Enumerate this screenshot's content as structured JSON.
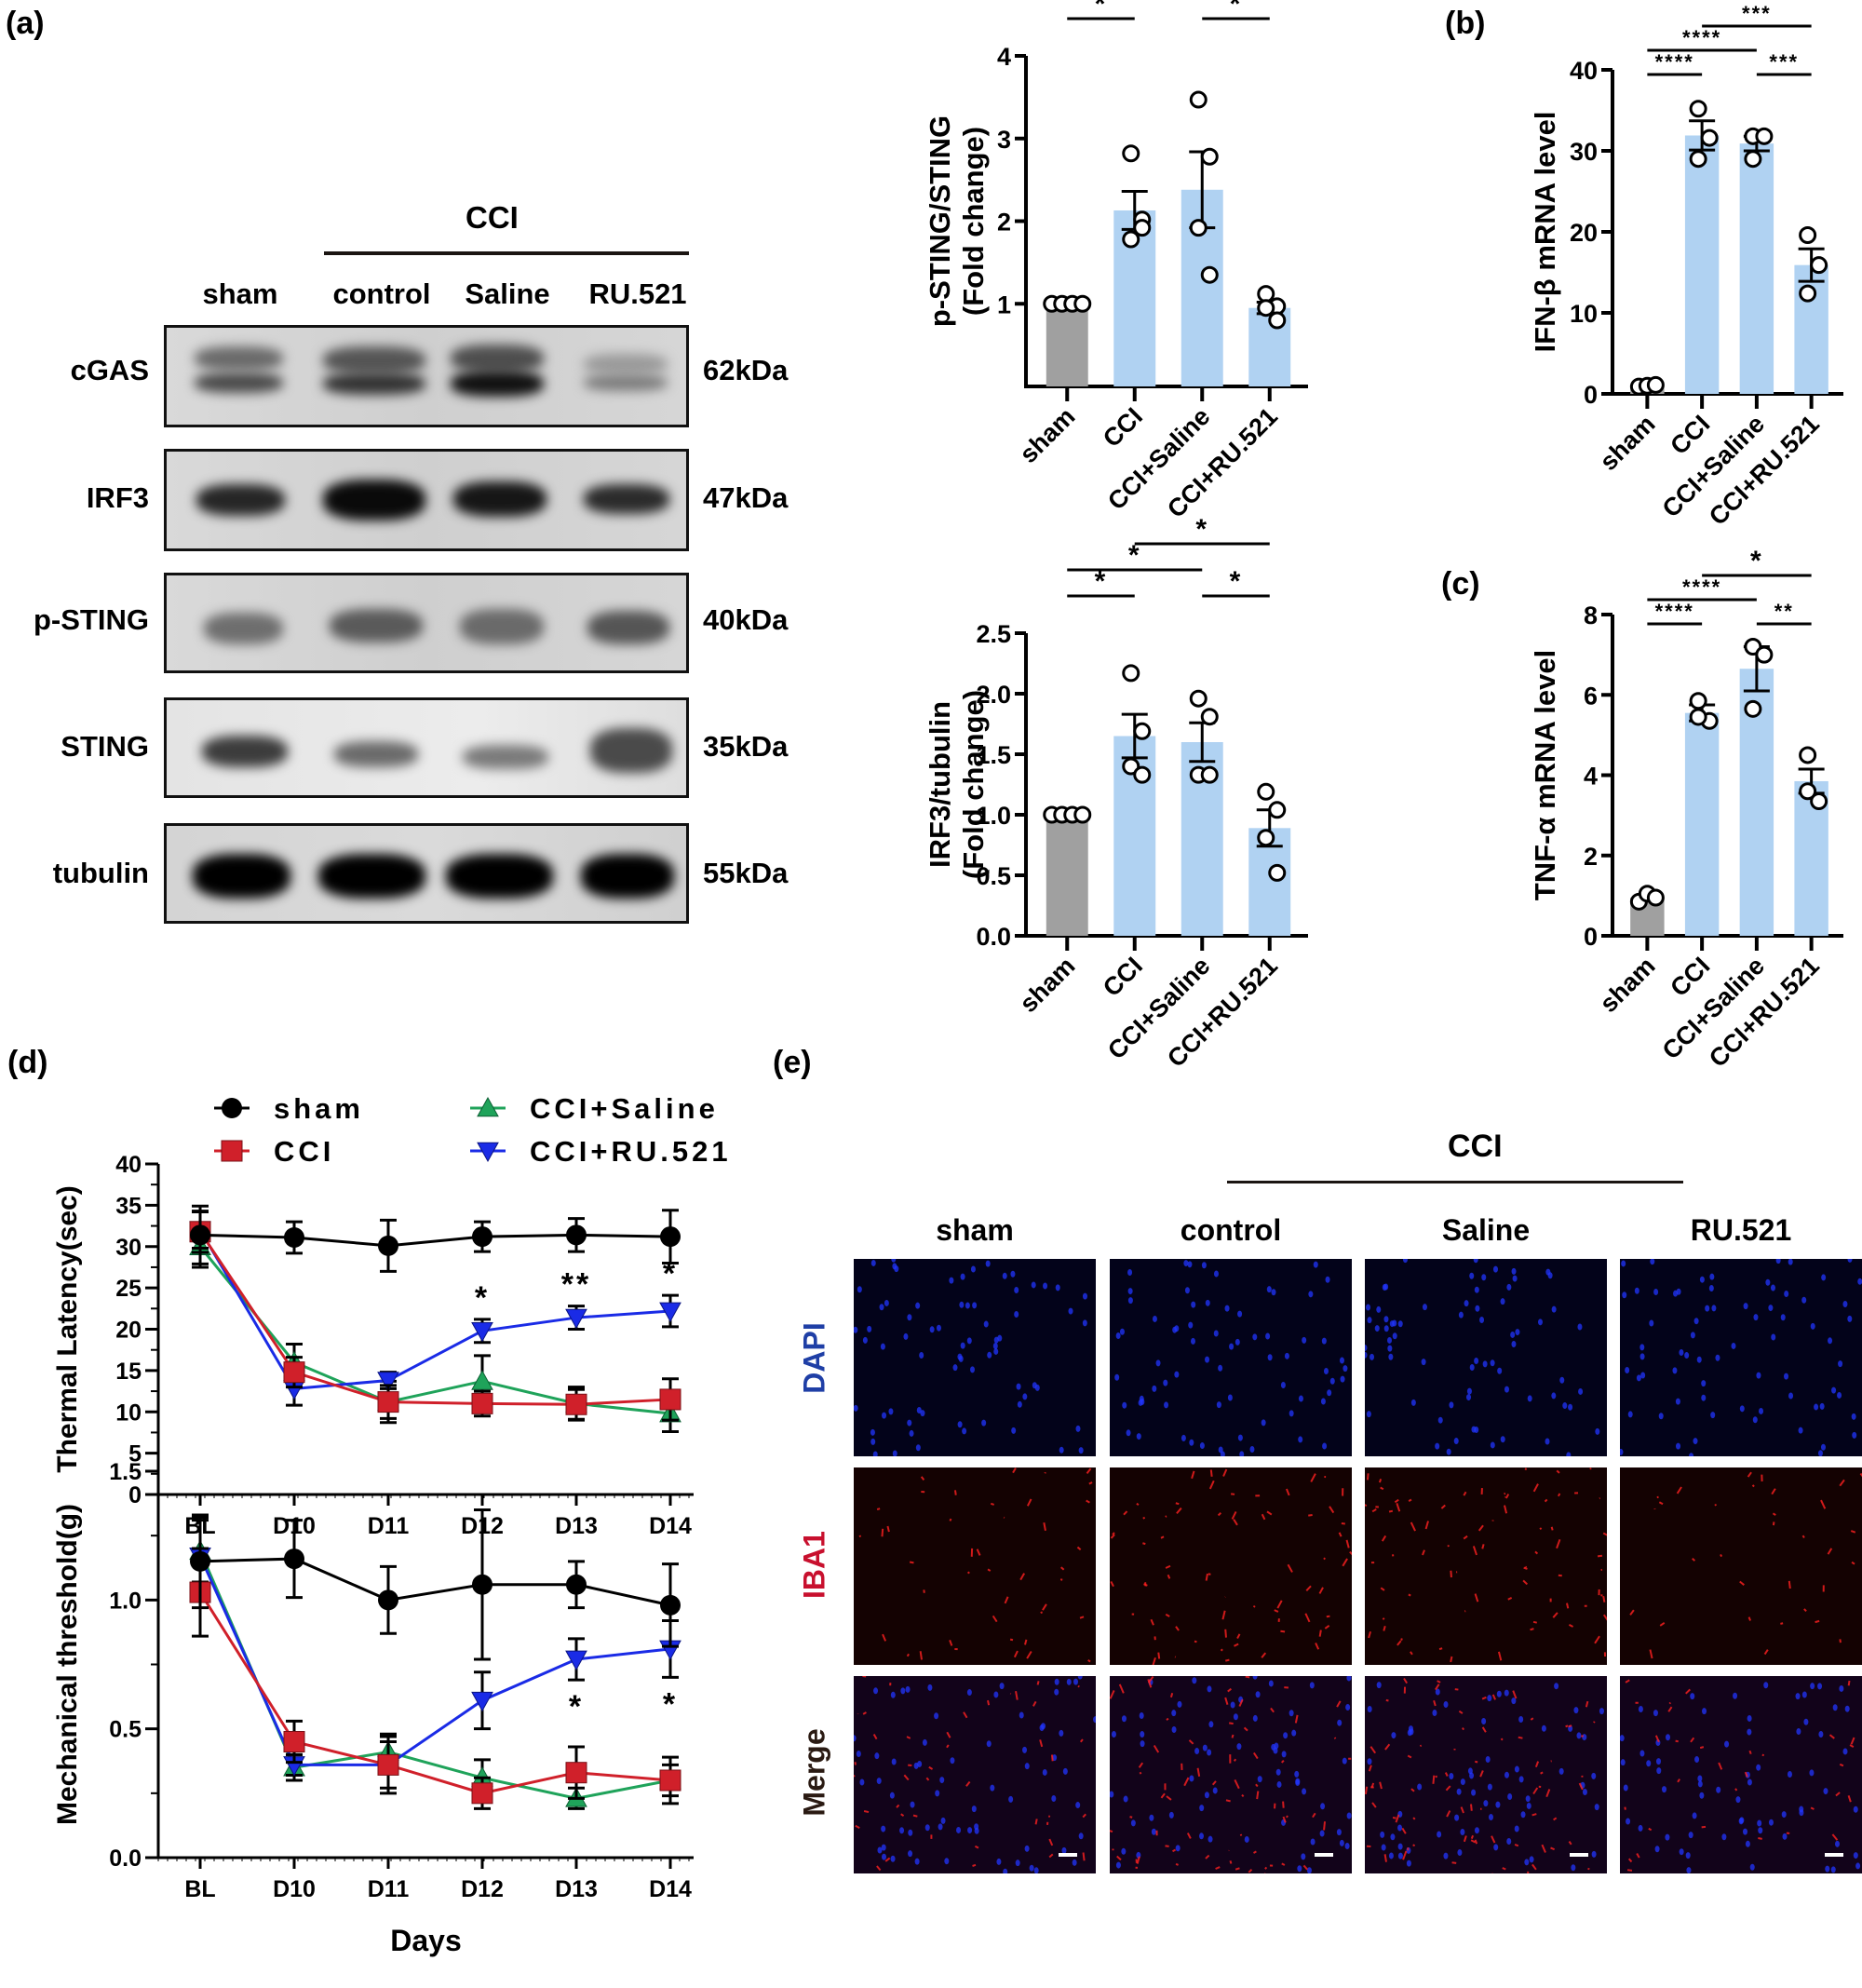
{
  "figure": {
    "panels": {
      "a": "(a)",
      "b": "(b)",
      "c": "(c)",
      "d": "(d)",
      "e": "(e)"
    },
    "western_blot": {
      "group_label": "CCI",
      "lanes": [
        "sham",
        "control",
        "Saline",
        "RU.521"
      ],
      "rows": [
        {
          "protein": "cGAS",
          "kda": "62kDa"
        },
        {
          "protein": "IRF3",
          "kda": "47kDa"
        },
        {
          "protein": "p-STING",
          "kda": "40kDa"
        },
        {
          "protein": "STING",
          "kda": "35kDa"
        },
        {
          "protein": "tubulin",
          "kda": "55kDa"
        }
      ]
    },
    "immunofluorescence": {
      "group_label": "CCI",
      "columns": [
        "sham",
        "control",
        "Saline",
        "RU.521"
      ],
      "rows": [
        {
          "label": "DAPI",
          "color": "#1f3fa6"
        },
        {
          "label": "IBA1",
          "color": "#c8102e"
        },
        {
          "label": "Merge",
          "color": "#2a1a12"
        }
      ]
    },
    "colors": {
      "sham_bar": "#a0a0a0",
      "treatment_bar": "#b0d2f2",
      "sham_line": "#000000",
      "cci_line": "#d0202a",
      "saline_line": "#1fa35a",
      "ru521_line": "#1a2be6"
    }
  },
  "chart_data": [
    {
      "id": "pSTING",
      "type": "bar",
      "title": "",
      "xlabel": "",
      "ylabel": "p-STING/STING (Fold change)",
      "ylabel_lines": [
        "p-STING/STING",
        "(Fold change)"
      ],
      "categories": [
        "sham",
        "CCI",
        "CCI+Saline",
        "CCI+RU.521"
      ],
      "values": [
        1.0,
        2.13,
        2.38,
        0.95
      ],
      "sem": [
        0,
        0.23,
        0.46,
        0.07
      ],
      "points": [
        [
          1,
          1,
          1,
          1
        ],
        [
          2.82,
          2.02,
          1.78,
          1.92
        ],
        [
          3.47,
          2.78,
          1.92,
          1.35
        ],
        [
          1.12,
          0.97,
          0.95,
          0.8
        ]
      ],
      "ylim": [
        0,
        4
      ],
      "yticks": [
        1,
        2,
        3,
        4
      ],
      "significance": [
        {
          "from": 0,
          "to": 1,
          "label": "*",
          "level": 0
        },
        {
          "from": 2,
          "to": 3,
          "label": "*",
          "level": 0
        },
        {
          "from": 0,
          "to": 2,
          "label": "*",
          "level": 1
        },
        {
          "from": 1,
          "to": 3,
          "label": "*",
          "level": 2
        }
      ]
    },
    {
      "id": "IRF3",
      "type": "bar",
      "ylabel": "IRF3/tubulin (Fold change)",
      "ylabel_lines": [
        "IRF3/tubulin",
        "(Fold change)"
      ],
      "categories": [
        "sham",
        "CCI",
        "CCI+Saline",
        "CCI+RU.521"
      ],
      "values": [
        1.0,
        1.65,
        1.6,
        0.89
      ],
      "sem": [
        0,
        0.18,
        0.16,
        0.15
      ],
      "points": [
        [
          1,
          1,
          1,
          1
        ],
        [
          2.17,
          1.69,
          1.4,
          1.33
        ],
        [
          1.96,
          1.81,
          1.33,
          1.33
        ],
        [
          1.19,
          1.04,
          0.81,
          0.52
        ]
      ],
      "ylim": [
        0,
        2.5
      ],
      "yticks": [
        "0.0",
        "0.5",
        "1.0",
        "1.5",
        "2.0",
        "2.5"
      ],
      "significance": [
        {
          "from": 0,
          "to": 1,
          "label": "*",
          "level": 0
        },
        {
          "from": 2,
          "to": 3,
          "label": "*",
          "level": 0
        },
        {
          "from": 0,
          "to": 2,
          "label": "*",
          "level": 1
        },
        {
          "from": 1,
          "to": 3,
          "label": "*",
          "level": 2
        }
      ]
    },
    {
      "id": "IFNb",
      "type": "bar",
      "ylabel": "IFN-β mRNA level",
      "categories": [
        "sham",
        "CCI",
        "CCI+Saline",
        "CCI+RU.521"
      ],
      "values": [
        1.0,
        31.9,
        30.9,
        15.9
      ],
      "sem": [
        0,
        1.8,
        0.9,
        2.0
      ],
      "points": [
        [
          0.9,
          1.0,
          1.1
        ],
        [
          35.2,
          31.6,
          29.0
        ],
        [
          31.8,
          31.8,
          29.0
        ],
        [
          19.6,
          15.9,
          12.4
        ]
      ],
      "ylim": [
        0,
        40
      ],
      "yticks": [
        0,
        10,
        20,
        30,
        40
      ],
      "significance": [
        {
          "from": 0,
          "to": 1,
          "label": "****",
          "level": 0
        },
        {
          "from": 2,
          "to": 3,
          "label": "***",
          "level": 0
        },
        {
          "from": 0,
          "to": 2,
          "label": "****",
          "level": 1
        },
        {
          "from": 1,
          "to": 3,
          "label": "***",
          "level": 2
        }
      ]
    },
    {
      "id": "TNFa",
      "type": "bar",
      "ylabel": "TNF-α mRNA level",
      "categories": [
        "sham",
        "CCI",
        "CCI+Saline",
        "CCI+RU.521"
      ],
      "values": [
        0.95,
        5.55,
        6.65,
        3.85
      ],
      "sem": [
        0.05,
        0.2,
        0.55,
        0.3
      ],
      "points": [
        [
          0.85,
          1.05,
          0.95
        ],
        [
          5.85,
          5.35,
          5.45
        ],
        [
          7.2,
          7.0,
          5.65
        ],
        [
          4.5,
          3.35,
          3.6
        ]
      ],
      "ylim": [
        0,
        8
      ],
      "yticks": [
        0,
        2,
        4,
        6,
        8
      ],
      "significance": [
        {
          "from": 0,
          "to": 1,
          "label": "****",
          "level": 0
        },
        {
          "from": 2,
          "to": 3,
          "label": "**",
          "level": 0
        },
        {
          "from": 0,
          "to": 2,
          "label": "****",
          "level": 1
        },
        {
          "from": 1,
          "to": 3,
          "label": "*",
          "level": 2
        }
      ]
    },
    {
      "id": "thermal",
      "type": "line",
      "ylabel": "Thermal Latency(sec)",
      "xlabel": "",
      "categories": [
        "BL",
        "D10",
        "D11",
        "D12",
        "D13",
        "D14"
      ],
      "ylim": [
        0,
        40
      ],
      "yticks": [
        0,
        5,
        10,
        15,
        20,
        25,
        30,
        35,
        40
      ],
      "legend": [
        "sham",
        "CCI",
        "CCI+Saline",
        "CCI+RU.521"
      ],
      "series": [
        {
          "name": "sham",
          "marker": "circle",
          "values": [
            31.4,
            31.1,
            30.1,
            31.2,
            31.4,
            31.2
          ],
          "err": [
            3.5,
            1.9,
            3.1,
            1.8,
            2.0,
            3.2
          ]
        },
        {
          "name": "CCI",
          "marker": "square",
          "values": [
            31.8,
            14.8,
            11.2,
            11.0,
            10.9,
            11.5
          ],
          "err": [
            2.5,
            1.8,
            2.0,
            1.5,
            1.8,
            2.5
          ]
        },
        {
          "name": "CCI+Saline",
          "marker": "triangle-up",
          "values": [
            30.0,
            16.0,
            11.2,
            13.7,
            11.0,
            9.8
          ],
          "err": [
            2.5,
            2.2,
            2.5,
            3.1,
            2.0,
            2.2
          ]
        },
        {
          "name": "CCI+RU.521",
          "marker": "triangle-down",
          "values": [
            32.0,
            12.8,
            13.8,
            19.8,
            21.4,
            22.2
          ],
          "err": [
            2.2,
            2.0,
            1.0,
            1.4,
            1.4,
            1.9
          ]
        }
      ],
      "annotations": [
        {
          "x": "D12",
          "label": "*"
        },
        {
          "x": "D13",
          "label": "**"
        },
        {
          "x": "D14",
          "label": "*"
        }
      ]
    },
    {
      "id": "mechanical",
      "type": "line",
      "ylabel": "Mechanical threshold(g)",
      "xlabel": "Days",
      "categories": [
        "BL",
        "D10",
        "D11",
        "D12",
        "D13",
        "D14"
      ],
      "ylim": [
        0,
        1.5
      ],
      "yticks": [
        "0.0",
        "0.5",
        "1.0",
        "1.5"
      ],
      "series": [
        {
          "name": "sham",
          "marker": "circle",
          "values": [
            1.15,
            1.16,
            1.0,
            1.06,
            1.06,
            0.98
          ],
          "err": [
            0.18,
            0.15,
            0.13,
            0.29,
            0.09,
            0.16
          ]
        },
        {
          "name": "CCI",
          "marker": "square",
          "values": [
            1.03,
            0.45,
            0.36,
            0.25,
            0.33,
            0.3
          ],
          "err": [
            0.17,
            0.08,
            0.11,
            0.06,
            0.1,
            0.09
          ]
        },
        {
          "name": "CCI+Saline",
          "marker": "triangle-up",
          "values": [
            1.19,
            0.35,
            0.41,
            0.31,
            0.23,
            0.3
          ],
          "err": [
            0.12,
            0.05,
            0.07,
            0.07,
            0.04,
            0.06
          ]
        },
        {
          "name": "CCI+RU.521",
          "marker": "triangle-down",
          "values": [
            1.17,
            0.36,
            0.36,
            0.61,
            0.77,
            0.81
          ],
          "err": [
            0.15,
            0.04,
            0.09,
            0.11,
            0.08,
            0.11
          ]
        }
      ],
      "annotations": [
        {
          "x": "D13",
          "label": "*"
        },
        {
          "x": "D14",
          "label": "*"
        }
      ]
    }
  ]
}
